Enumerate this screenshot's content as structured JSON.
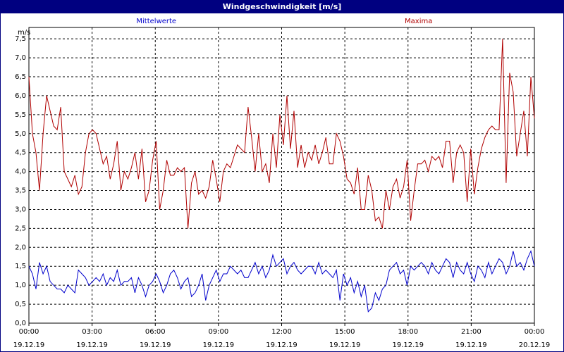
{
  "window": {
    "title": "Windgeschwindigkeit [m/s]"
  },
  "colors": {
    "mean": "#0000cc",
    "max": "#b00000",
    "grid": "#000000",
    "titlebar": "#000080"
  },
  "chart_data": {
    "type": "line",
    "title": "Windgeschwindigkeit [m/s]",
    "ylabel": "m/s",
    "ylim": [
      0,
      7.8
    ],
    "yticks": [
      0.0,
      0.5,
      1.0,
      1.5,
      2.0,
      2.5,
      3.0,
      3.5,
      4.0,
      4.5,
      5.0,
      5.5,
      6.0,
      6.5,
      7.0,
      7.5
    ],
    "ytick_labels": [
      "0,0",
      "0,5",
      "1,0",
      "1,5",
      "2,0",
      "2,5",
      "3,0",
      "3,5",
      "4,0",
      "4,5",
      "5,0",
      "5,5",
      "6,0",
      "6,5",
      "7,0",
      "7,5"
    ],
    "xlim": [
      0,
      24
    ],
    "xticks": [
      {
        "hour": 0,
        "time": "00:00",
        "date": "19.12.19"
      },
      {
        "hour": 3,
        "time": "03:00",
        "date": "19.12.19"
      },
      {
        "hour": 6,
        "time": "06:00",
        "date": "19.12.19"
      },
      {
        "hour": 9,
        "time": "09:00",
        "date": "19.12.19"
      },
      {
        "hour": 12,
        "time": "12:00",
        "date": "19.12.19"
      },
      {
        "hour": 15,
        "time": "15:00",
        "date": "19.12.19"
      },
      {
        "hour": 18,
        "time": "18:00",
        "date": "19.12.19"
      },
      {
        "hour": 21,
        "time": "21:00",
        "date": "19.12.19"
      },
      {
        "hour": 24,
        "time": "00:00",
        "date": "20.12.19"
      }
    ],
    "grid": true,
    "legend": "top",
    "series": [
      {
        "name": "Mittelwerte",
        "color": "#0000cc",
        "values": [
          1.5,
          1.3,
          0.9,
          1.6,
          1.3,
          1.5,
          1.1,
          1.0,
          0.9,
          0.9,
          0.8,
          1.0,
          0.9,
          0.8,
          1.4,
          1.3,
          1.2,
          1.0,
          1.1,
          1.2,
          1.1,
          1.3,
          1.0,
          1.2,
          1.1,
          1.4,
          1.0,
          1.1,
          1.1,
          1.2,
          0.8,
          1.2,
          1.0,
          0.7,
          1.0,
          1.1,
          1.3,
          1.1,
          0.8,
          1.0,
          1.3,
          1.4,
          1.2,
          0.9,
          1.1,
          1.2,
          0.7,
          0.8,
          1.0,
          1.3,
          0.6,
          1.0,
          1.2,
          1.4,
          1.1,
          1.3,
          1.3,
          1.5,
          1.4,
          1.3,
          1.4,
          1.2,
          1.2,
          1.4,
          1.6,
          1.3,
          1.5,
          1.2,
          1.4,
          1.8,
          1.5,
          1.6,
          1.7,
          1.3,
          1.5,
          1.6,
          1.4,
          1.3,
          1.4,
          1.5,
          1.5,
          1.3,
          1.6,
          1.3,
          1.4,
          1.3,
          1.2,
          1.4,
          0.6,
          1.3,
          1.0,
          1.2,
          0.8,
          1.1,
          0.7,
          1.0,
          0.3,
          0.4,
          0.8,
          0.6,
          0.9,
          1.0,
          1.4,
          1.5,
          1.6,
          1.3,
          1.4,
          1.0,
          1.5,
          1.4,
          1.5,
          1.6,
          1.5,
          1.3,
          1.6,
          1.4,
          1.3,
          1.5,
          1.7,
          1.6,
          1.2,
          1.6,
          1.4,
          1.3,
          1.6,
          1.3,
          1.1,
          1.5,
          1.4,
          1.2,
          1.6,
          1.3,
          1.5,
          1.7,
          1.6,
          1.3,
          1.5,
          1.9,
          1.5,
          1.6,
          1.4,
          1.7,
          1.9,
          1.5
        ]
      },
      {
        "name": "Maxima",
        "color": "#b00000",
        "values": [
          6.5,
          5.0,
          4.5,
          3.5,
          5.0,
          6.0,
          5.6,
          5.2,
          5.1,
          5.7,
          4.0,
          3.8,
          3.6,
          3.9,
          3.4,
          3.6,
          4.5,
          5.0,
          5.1,
          5.0,
          4.6,
          4.2,
          4.4,
          3.8,
          4.2,
          4.8,
          3.5,
          4.0,
          3.8,
          4.1,
          4.5,
          3.8,
          4.6,
          3.2,
          3.5,
          4.3,
          4.8,
          3.0,
          3.5,
          4.3,
          3.9,
          3.9,
          4.1,
          4.0,
          4.1,
          2.5,
          3.7,
          4.0,
          3.4,
          3.5,
          3.3,
          3.6,
          4.3,
          3.8,
          3.2,
          4.0,
          4.2,
          4.1,
          4.4,
          4.7,
          4.6,
          4.5,
          5.7,
          4.9,
          4.0,
          5.0,
          4.0,
          4.2,
          3.7,
          5.0,
          4.1,
          5.5,
          4.7,
          6.0,
          4.6,
          5.6,
          4.1,
          4.7,
          4.1,
          4.5,
          4.3,
          4.7,
          4.2,
          4.5,
          4.9,
          4.2,
          4.2,
          5.0,
          4.8,
          4.4,
          3.8,
          3.7,
          3.4,
          4.1,
          3.0,
          3.0,
          3.9,
          3.5,
          2.7,
          2.8,
          2.5,
          3.5,
          3.0,
          3.6,
          3.8,
          3.3,
          3.6,
          4.3,
          2.7,
          3.5,
          4.2,
          4.2,
          4.3,
          4.0,
          4.4,
          4.3,
          4.4,
          4.1,
          4.8,
          4.8,
          3.7,
          4.5,
          4.7,
          4.5,
          3.2,
          4.6,
          3.4,
          4.1,
          4.6,
          4.9,
          5.1,
          5.2,
          5.1,
          5.1,
          7.5,
          3.7,
          6.6,
          6.1,
          4.4,
          5.0,
          5.6,
          4.4,
          6.5,
          5.4
        ]
      }
    ]
  }
}
